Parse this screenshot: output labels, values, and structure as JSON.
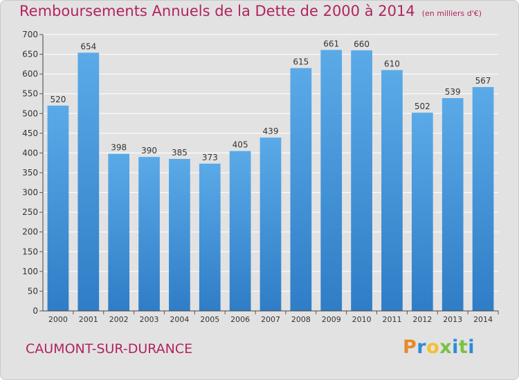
{
  "chart_data": {
    "type": "bar",
    "title": "Remboursements Annuels de la Dette de 2000 à 2014",
    "subtitle": "(en milliers d'€)",
    "categories": [
      "2000",
      "2001",
      "2002",
      "2003",
      "2004",
      "2005",
      "2006",
      "2007",
      "2008",
      "2009",
      "2010",
      "2011",
      "2012",
      "2013",
      "2014"
    ],
    "values": [
      520,
      654,
      398,
      390,
      385,
      373,
      405,
      439,
      615,
      661,
      660,
      610,
      502,
      539,
      567
    ],
    "ylim": [
      0,
      700
    ],
    "yticks": [
      0,
      50,
      100,
      150,
      200,
      250,
      300,
      350,
      400,
      450,
      500,
      550,
      600,
      650,
      700
    ],
    "grid": true,
    "bar_color": "#4f9fe0",
    "title_color": "#b2235e"
  },
  "commune": "CAUMONT-SUR-DURANCE",
  "logo": {
    "letters": [
      "P",
      "r",
      "o",
      "x",
      "i",
      "t",
      "i"
    ],
    "colors": [
      "#e8892b",
      "#2e8bd8",
      "#f2c12e",
      "#7cc142",
      "#2e8bd8",
      "#7cc142",
      "#2e8bd8"
    ]
  }
}
